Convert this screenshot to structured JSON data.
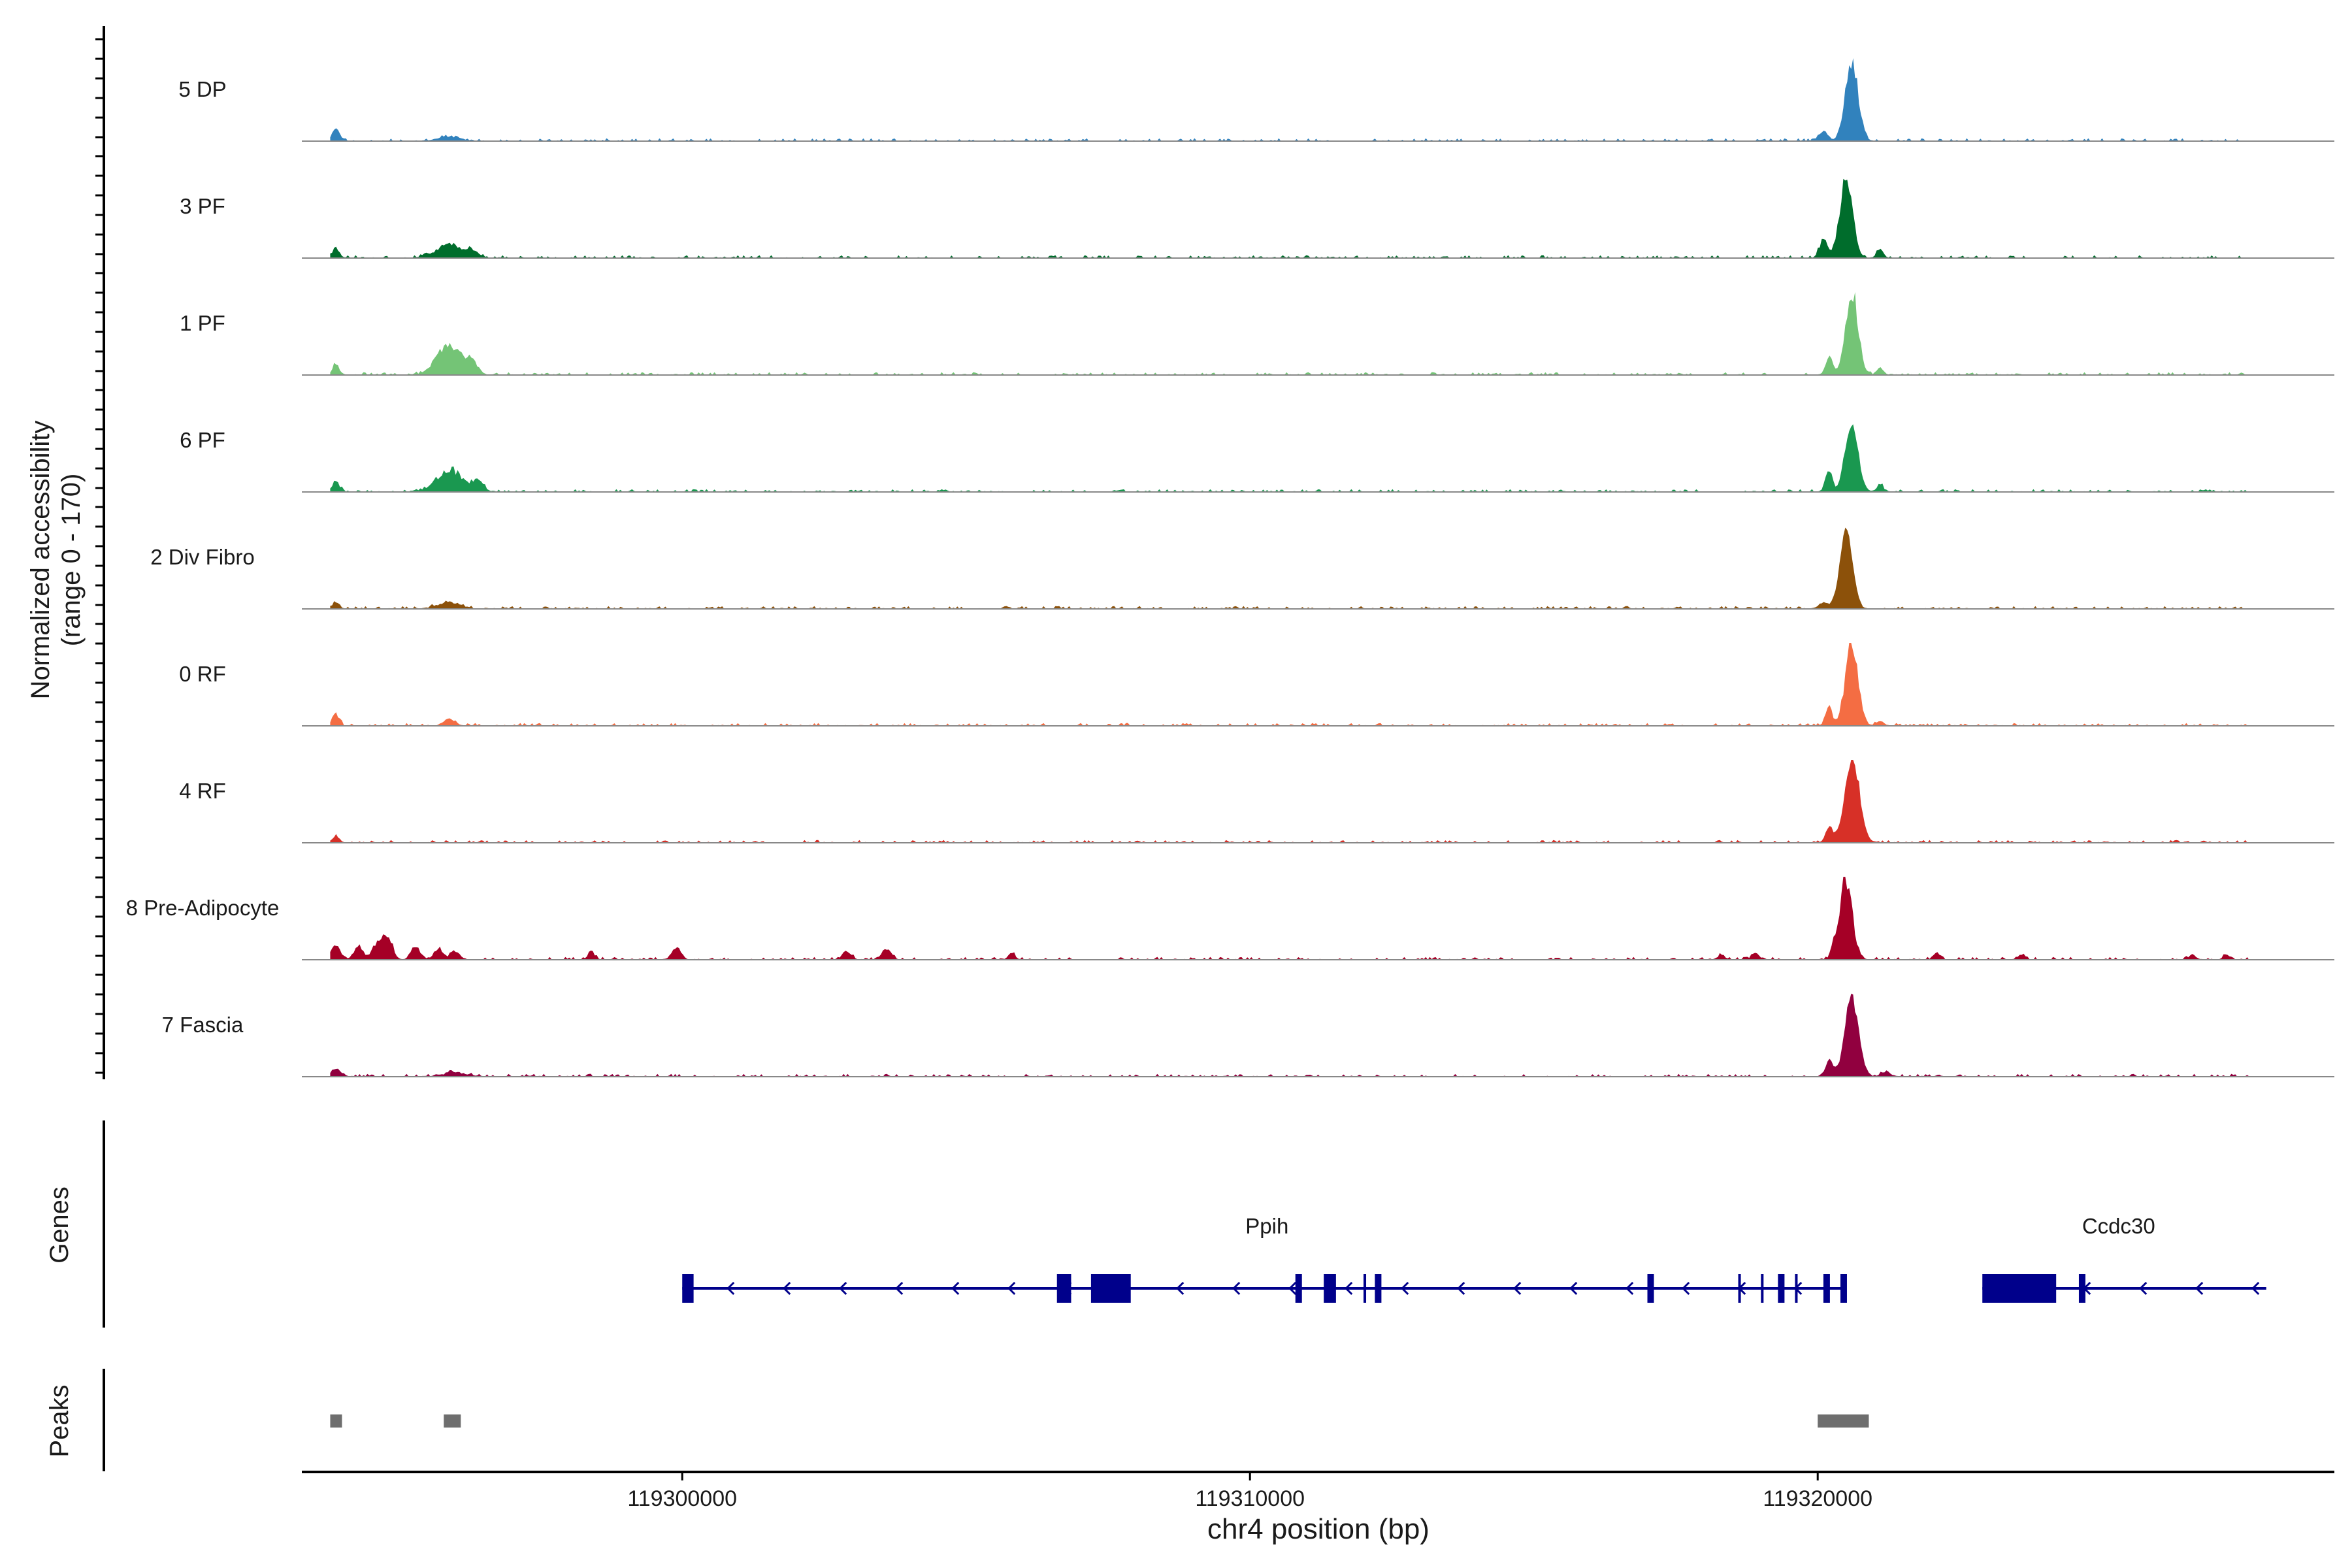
{
  "chart_data": {
    "type": "area",
    "title": "",
    "xlabel": "chr4 position (bp)",
    "ylabel_line1": "Normalized accessibility",
    "ylabel_line2": "(range 0 - 170)",
    "y_range": [
      0,
      170
    ],
    "xlim": [
      119293300,
      119329100
    ],
    "x_ticks": [
      119300000,
      119310000,
      119320000
    ],
    "x_tick_labels": [
      "119300000",
      "119310000",
      "119320000"
    ],
    "tracks": [
      {
        "name": "5 DP",
        "color": "#3182BD",
        "peaks": [
          [
            119293900,
            0.17,
            60
          ],
          [
            119295900,
            0.05,
            200
          ],
          [
            119320600,
            1.0,
            110
          ],
          [
            119320100,
            0.12,
            80
          ]
        ]
      },
      {
        "name": "3 PF",
        "color": "#006D2C",
        "peaks": [
          [
            119293900,
            0.12,
            60
          ],
          [
            119295900,
            0.16,
            220
          ],
          [
            119296300,
            0.08,
            100
          ],
          [
            119320500,
            1.0,
            110
          ],
          [
            119320100,
            0.22,
            70
          ],
          [
            119321100,
            0.1,
            60
          ]
        ]
      },
      {
        "name": "1 PF",
        "color": "#74C476",
        "peaks": [
          [
            119293900,
            0.12,
            60
          ],
          [
            119295900,
            0.36,
            220
          ],
          [
            119296300,
            0.12,
            100
          ],
          [
            119320600,
            1.0,
            110
          ],
          [
            119320200,
            0.22,
            60
          ],
          [
            119321100,
            0.08,
            60
          ]
        ]
      },
      {
        "name": "6 PF",
        "color": "#1A9850",
        "peaks": [
          [
            119293900,
            0.14,
            60
          ],
          [
            119295900,
            0.26,
            220
          ],
          [
            119296400,
            0.12,
            100
          ],
          [
            119320600,
            0.86,
            110
          ],
          [
            119320200,
            0.26,
            60
          ],
          [
            119321100,
            0.08,
            60
          ]
        ]
      },
      {
        "name": "2 Div Fibro",
        "color": "#8C510A",
        "peaks": [
          [
            119293900,
            0.07,
            60
          ],
          [
            119295900,
            0.07,
            200
          ],
          [
            119320500,
            1.0,
            110
          ],
          [
            119320100,
            0.08,
            80
          ]
        ]
      },
      {
        "name": "0 RF",
        "color": "#F46D43",
        "peaks": [
          [
            119293900,
            0.14,
            60
          ],
          [
            119295900,
            0.08,
            100
          ],
          [
            119320600,
            1.0,
            110
          ],
          [
            119320200,
            0.22,
            60
          ],
          [
            119321100,
            0.06,
            60
          ]
        ]
      },
      {
        "name": "4 RF",
        "color": "#D73027",
        "peaks": [
          [
            119293900,
            0.08,
            60
          ],
          [
            119320600,
            1.0,
            130
          ],
          [
            119320200,
            0.18,
            60
          ]
        ]
      },
      {
        "name": "8 Pre-Adipocyte",
        "color": "#A50026",
        "peaks": [
          [
            119293900,
            0.18,
            80
          ],
          [
            119294300,
            0.16,
            80
          ],
          [
            119294600,
            0.16,
            80
          ],
          [
            119294800,
            0.3,
            90
          ],
          [
            119295300,
            0.16,
            80
          ],
          [
            119295700,
            0.12,
            80
          ],
          [
            119296000,
            0.1,
            80
          ],
          [
            119298400,
            0.1,
            60
          ],
          [
            119299900,
            0.14,
            80
          ],
          [
            119302900,
            0.1,
            80
          ],
          [
            119303600,
            0.12,
            80
          ],
          [
            119305800,
            0.08,
            60
          ],
          [
            119318300,
            0.06,
            60
          ],
          [
            119318900,
            0.08,
            60
          ],
          [
            119320500,
            1.0,
            110
          ],
          [
            119320300,
            0.12,
            60
          ],
          [
            119322100,
            0.08,
            60
          ],
          [
            119323600,
            0.06,
            60
          ],
          [
            119326600,
            0.06,
            60
          ],
          [
            119327200,
            0.06,
            60
          ]
        ]
      },
      {
        "name": "7 Fascia",
        "color": "#91003F",
        "peaks": [
          [
            119293900,
            0.08,
            100
          ],
          [
            119296000,
            0.05,
            200
          ],
          [
            119320600,
            1.0,
            120
          ],
          [
            119320200,
            0.18,
            70
          ],
          [
            119321200,
            0.06,
            80
          ]
        ]
      }
    ],
    "genes_label": "Genes",
    "genes": [
      {
        "name": "Ppih",
        "start": 119300000,
        "end": 119320500,
        "strand": "-",
        "exons": [
          [
            119300000,
            119300200
          ],
          [
            119306600,
            119306850
          ],
          [
            119307200,
            119307900
          ],
          [
            119310800,
            119310900
          ],
          [
            119311300,
            119311350
          ],
          [
            119311400,
            119311450
          ],
          [
            119312200,
            119312300
          ],
          [
            119317000,
            119317100
          ],
          [
            119319300,
            119319350
          ],
          [
            119320100,
            119320200
          ],
          [
            119320400,
            119320500
          ]
        ],
        "thin_exons": [
          [
            119312000,
            119312030
          ],
          [
            119318600,
            119318630
          ],
          [
            119319000,
            119319030
          ],
          [
            119319600,
            119319630
          ]
        ]
      },
      {
        "name": "Ccdc30",
        "start": 119322900,
        "end": 119327900,
        "strand": "-",
        "exons": [
          [
            119322900,
            119324200
          ],
          [
            119324600,
            119324700
          ]
        ],
        "thin_exons": []
      }
    ],
    "peaks_label": "Peaks",
    "peak_regions": [
      [
        119293800,
        119294000
      ],
      [
        119295800,
        119296100
      ],
      [
        119320000,
        119320900
      ]
    ]
  }
}
